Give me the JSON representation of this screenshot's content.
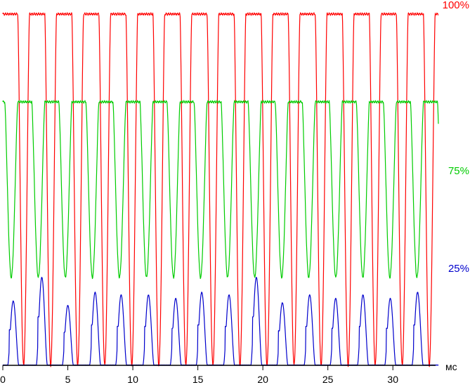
{
  "chart_data": {
    "type": "line",
    "title": "",
    "xlabel": "мс",
    "ylabel": "",
    "xlim": [
      0,
      33.5
    ],
    "grid": false,
    "x_ticks": [
      "0",
      "5",
      "10",
      "15",
      "20",
      "25",
      "30"
    ],
    "x_tick_values": [
      0,
      5,
      10,
      15,
      20,
      25,
      30
    ],
    "series": [
      {
        "name": "100%",
        "color": "#ff0000",
        "kind": "dips",
        "high": 100,
        "low": 0,
        "period_ms": 2.08,
        "first_dip_ms": 1.6,
        "dip_width_ms": 0.45
      },
      {
        "name": "75%",
        "color": "#00cc00",
        "kind": "dips",
        "high": 75,
        "low": 25,
        "period_ms": 2.08,
        "first_dip_ms": 0.65,
        "dip_width_ms": 0.5
      },
      {
        "name": "25%",
        "color": "#0000cc",
        "kind": "pulses",
        "high": 25,
        "low": 0,
        "peaks_ms": [
          0.8,
          3.0,
          5.0,
          7.1,
          9.1,
          11.2,
          13.3,
          15.3,
          17.4,
          19.5,
          21.5,
          23.6,
          25.6,
          27.7,
          29.8,
          31.9
        ],
        "peak_levels": [
          0.73,
          1.0,
          0.68,
          0.83,
          0.8,
          0.8,
          0.76,
          0.83,
          0.8,
          1.0,
          0.71,
          0.8,
          0.76,
          0.8,
          0.76,
          0.83
        ]
      }
    ],
    "legend": [
      {
        "label": "100%",
        "color": "#ff0000"
      },
      {
        "label": "75%",
        "color": "#00cc00"
      },
      {
        "label": "25%",
        "color": "#0000cc"
      }
    ]
  }
}
